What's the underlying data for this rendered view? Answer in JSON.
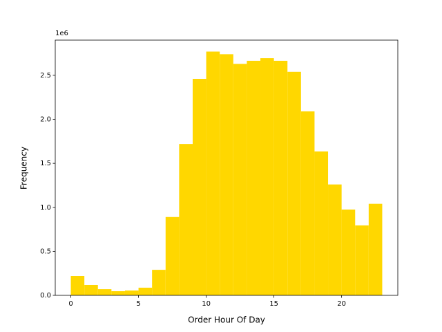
{
  "chart_data": {
    "type": "histogram",
    "xlabel": "Order Hour Of Day",
    "ylabel": "Frequency",
    "y_offset_label": "1e6",
    "bins": [
      0,
      1,
      2,
      3,
      4,
      5,
      6,
      7,
      8,
      9,
      10,
      11,
      12,
      13,
      14,
      15,
      16,
      17,
      18,
      19,
      20,
      21,
      22,
      23
    ],
    "values": [
      220000,
      118000,
      70000,
      47000,
      55000,
      87000,
      290000,
      890000,
      1720000,
      2460000,
      2770000,
      2740000,
      2630000,
      2665000,
      2695000,
      2665000,
      2540000,
      2090000,
      1635000,
      1260000,
      975000,
      795000,
      1040000
    ],
    "color": "#ffd700",
    "xlim": [
      -1.15,
      24.15
    ],
    "ylim": [
      0,
      2900000
    ],
    "xticks": [
      0,
      5,
      10,
      15,
      20
    ],
    "yticks": [
      {
        "value": 0,
        "label": "0.0"
      },
      {
        "value": 500000,
        "label": "0.5"
      },
      {
        "value": 1000000,
        "label": "1.0"
      },
      {
        "value": 1500000,
        "label": "1.5"
      },
      {
        "value": 2000000,
        "label": "2.0"
      },
      {
        "value": 2500000,
        "label": "2.5"
      }
    ]
  }
}
